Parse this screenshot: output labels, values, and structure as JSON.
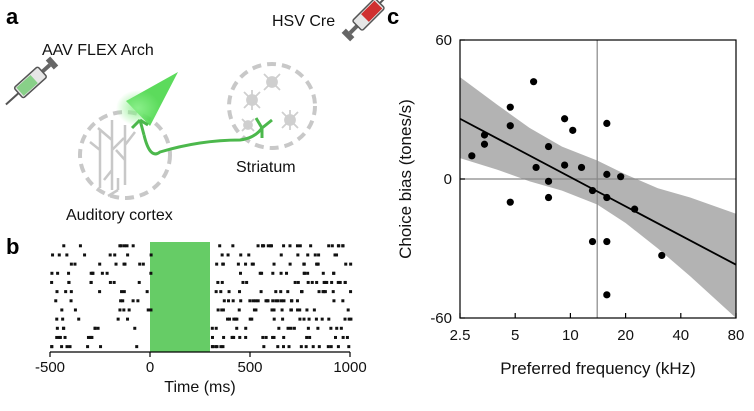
{
  "panels": {
    "a": "a",
    "b": "b",
    "c": "c"
  },
  "schematic": {
    "injection_left": "AAV FLEX Arch",
    "injection_right": "HSV Cre",
    "region_cortex": "Auditory cortex",
    "region_striatum": "Striatum",
    "colors": {
      "arch": "#4cc04c",
      "cre": "#d03030",
      "outline": "#c8c8c8"
    }
  },
  "chart_data": [
    {
      "type": "raster",
      "panel": "b",
      "xlabel": "Time (ms)",
      "xticks": [
        -500,
        0,
        500,
        1000
      ],
      "xlim": [
        -500,
        1000
      ],
      "light_on": {
        "start": 0,
        "end": 300,
        "color": "#66cc66"
      },
      "n_trials": 12,
      "spike_density_before": "sparse",
      "spike_density_after": "dense"
    },
    {
      "type": "scatter",
      "panel": "c",
      "xlabel": "Preferred frequency (kHz)",
      "ylabel": "Choice bias (tones/s)",
      "x_scale": "log",
      "xticks": [
        2.5,
        5,
        10,
        20,
        40,
        80
      ],
      "xlim": [
        2.5,
        80
      ],
      "yticks": [
        -60,
        0,
        60
      ],
      "ylim": [
        -60,
        60
      ],
      "vertical_line_x": 14,
      "points": [
        {
          "x": 2.9,
          "y": 10
        },
        {
          "x": 3.4,
          "y": 15
        },
        {
          "x": 3.4,
          "y": 19
        },
        {
          "x": 4.7,
          "y": -10
        },
        {
          "x": 4.7,
          "y": 23
        },
        {
          "x": 4.7,
          "y": 31
        },
        {
          "x": 6.3,
          "y": 42
        },
        {
          "x": 6.5,
          "y": 5
        },
        {
          "x": 7.6,
          "y": 14
        },
        {
          "x": 7.6,
          "y": -1
        },
        {
          "x": 7.6,
          "y": -8
        },
        {
          "x": 9.3,
          "y": 26
        },
        {
          "x": 9.3,
          "y": 6
        },
        {
          "x": 10.3,
          "y": 21
        },
        {
          "x": 11.5,
          "y": 5
        },
        {
          "x": 13.2,
          "y": -5
        },
        {
          "x": 13.2,
          "y": -27
        },
        {
          "x": 15.8,
          "y": 24
        },
        {
          "x": 15.8,
          "y": 2
        },
        {
          "x": 15.8,
          "y": -8
        },
        {
          "x": 15.8,
          "y": -27
        },
        {
          "x": 15.8,
          "y": -50
        },
        {
          "x": 18.8,
          "y": 1
        },
        {
          "x": 22.4,
          "y": -13
        },
        {
          "x": 31.5,
          "y": -33
        }
      ],
      "fit_line": {
        "x": [
          2.5,
          80
        ],
        "y": [
          26,
          -37
        ]
      },
      "confidence_band": {
        "x": [
          2.5,
          4,
          6,
          9,
          14,
          20,
          30,
          45,
          80
        ],
        "upper": [
          44,
          32,
          22,
          14,
          8,
          2,
          -4,
          -8,
          -15
        ],
        "lower": [
          9,
          4,
          -1,
          -5,
          -11,
          -19,
          -30,
          -42,
          -60
        ]
      }
    }
  ]
}
